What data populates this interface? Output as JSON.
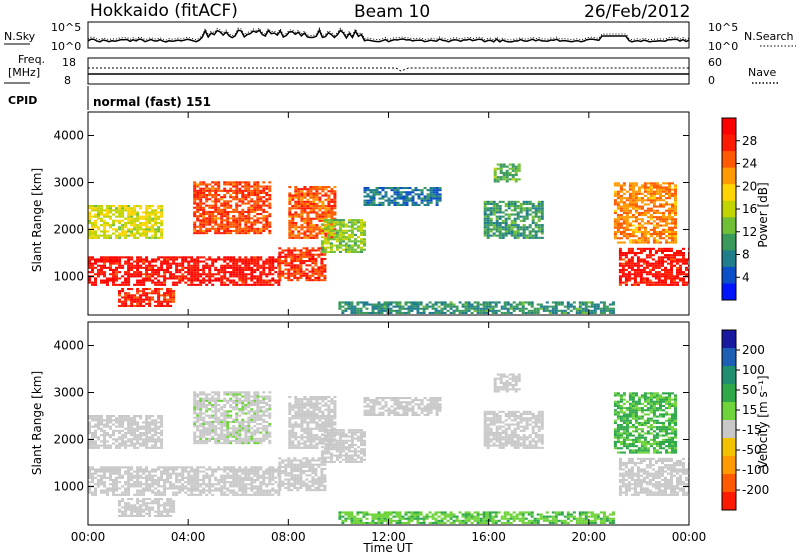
{
  "header": {
    "station": "Hokkaido (fitACF)",
    "beam": "Beam 10",
    "date": "26/Feb/2012"
  },
  "noise_panel": {
    "left_label": "N.Sky",
    "right_label": "N.Search",
    "left_ticks": [
      "10^5",
      "10^0"
    ],
    "right_ticks": [
      "10^5",
      "10^0"
    ]
  },
  "freq_panel": {
    "left_label_top": "Freq.",
    "left_label_unit": "[MHz]",
    "right_label": "Nave",
    "left_ticks": [
      "18",
      "8"
    ],
    "right_ticks": [
      "60",
      "0"
    ]
  },
  "cpid": {
    "label": "CPID",
    "value": "normal (fast) 151"
  },
  "x_axis": {
    "label": "Time UT",
    "ticks": [
      "00:00",
      "04:00",
      "08:00",
      "12:00",
      "16:00",
      "20:00",
      "00:00"
    ]
  },
  "y_axis": {
    "label": "Slant Range [km]",
    "ticks": [
      "1000",
      "2000",
      "3000",
      "4000"
    ]
  },
  "power_colorbar": {
    "title": "Power [dB]",
    "ticks": [
      "4",
      "8",
      "12",
      "16",
      "20",
      "24",
      "28"
    ],
    "colors": [
      "#0015ff",
      "#0a4fc8",
      "#1f7d8c",
      "#3a9a5c",
      "#6fc035",
      "#c2d400",
      "#ffd400",
      "#ff9a00",
      "#ff5a00",
      "#ff1a00",
      "#ff0000"
    ]
  },
  "velocity_colorbar": {
    "title": "Velocity [m s⁻¹]",
    "ticks": [
      "200",
      "100",
      "50",
      "15",
      "-15",
      "-50",
      "-100",
      "-200"
    ],
    "colors": [
      "#1a1aa0",
      "#1c5fb4",
      "#1f8f70",
      "#2fa84a",
      "#6fd33a",
      "#c8c8c8",
      "#f2c200",
      "#ff9a00",
      "#ff5a00",
      "#ff1a00"
    ]
  },
  "chart_data": {
    "type": "heatmap",
    "x_range_hours": [
      0,
      24
    ],
    "y_range_km": [
      180,
      4500
    ],
    "panels": [
      "Power [dB]",
      "Velocity [m s⁻¹]"
    ],
    "power_range_db": [
      0,
      32
    ],
    "velocity_range": [
      -250,
      250
    ],
    "echo_regions": [
      {
        "t0": 0.0,
        "t1": 7.6,
        "r0": 800,
        "r1": 1400,
        "power": 29,
        "velocity": 0
      },
      {
        "t0": 7.6,
        "t1": 9.4,
        "r0": 900,
        "r1": 1600,
        "power": 27,
        "velocity": -20
      },
      {
        "t0": 1.2,
        "t1": 3.4,
        "r0": 350,
        "r1": 750,
        "power": 28,
        "velocity": 0
      },
      {
        "t0": 4.2,
        "t1": 7.3,
        "r0": 1900,
        "r1": 3000,
        "power": 26,
        "velocity": 5
      },
      {
        "t0": 8.0,
        "t1": 9.8,
        "r0": 1800,
        "r1": 2900,
        "power": 25,
        "velocity": 0
      },
      {
        "t0": 9.3,
        "t1": 11.0,
        "r0": 1500,
        "r1": 2200,
        "power": 14,
        "velocity": -10
      },
      {
        "t0": 11.0,
        "t1": 14.0,
        "r0": 2500,
        "r1": 2900,
        "power": 7,
        "velocity": 0
      },
      {
        "t0": 15.8,
        "t1": 18.2,
        "r0": 1800,
        "r1": 2600,
        "power": 10,
        "velocity": 0
      },
      {
        "t0": 16.2,
        "t1": 17.2,
        "r0": 3000,
        "r1": 3400,
        "power": 12,
        "velocity": -5
      },
      {
        "t0": 10.0,
        "t1": 21.0,
        "r0": 200,
        "r1": 450,
        "power": 9,
        "velocity": 45
      },
      {
        "t0": 21.2,
        "t1": 24.0,
        "r0": 800,
        "r1": 1600,
        "power": 29,
        "velocity": 0
      },
      {
        "t0": 21.0,
        "t1": 23.5,
        "r0": 1700,
        "r1": 3000,
        "power": 23,
        "velocity": 55
      },
      {
        "t0": 0.0,
        "t1": 3.0,
        "r0": 1800,
        "r1": 2500,
        "power": 17,
        "velocity": -20
      }
    ],
    "grid": false,
    "legend": "right"
  }
}
